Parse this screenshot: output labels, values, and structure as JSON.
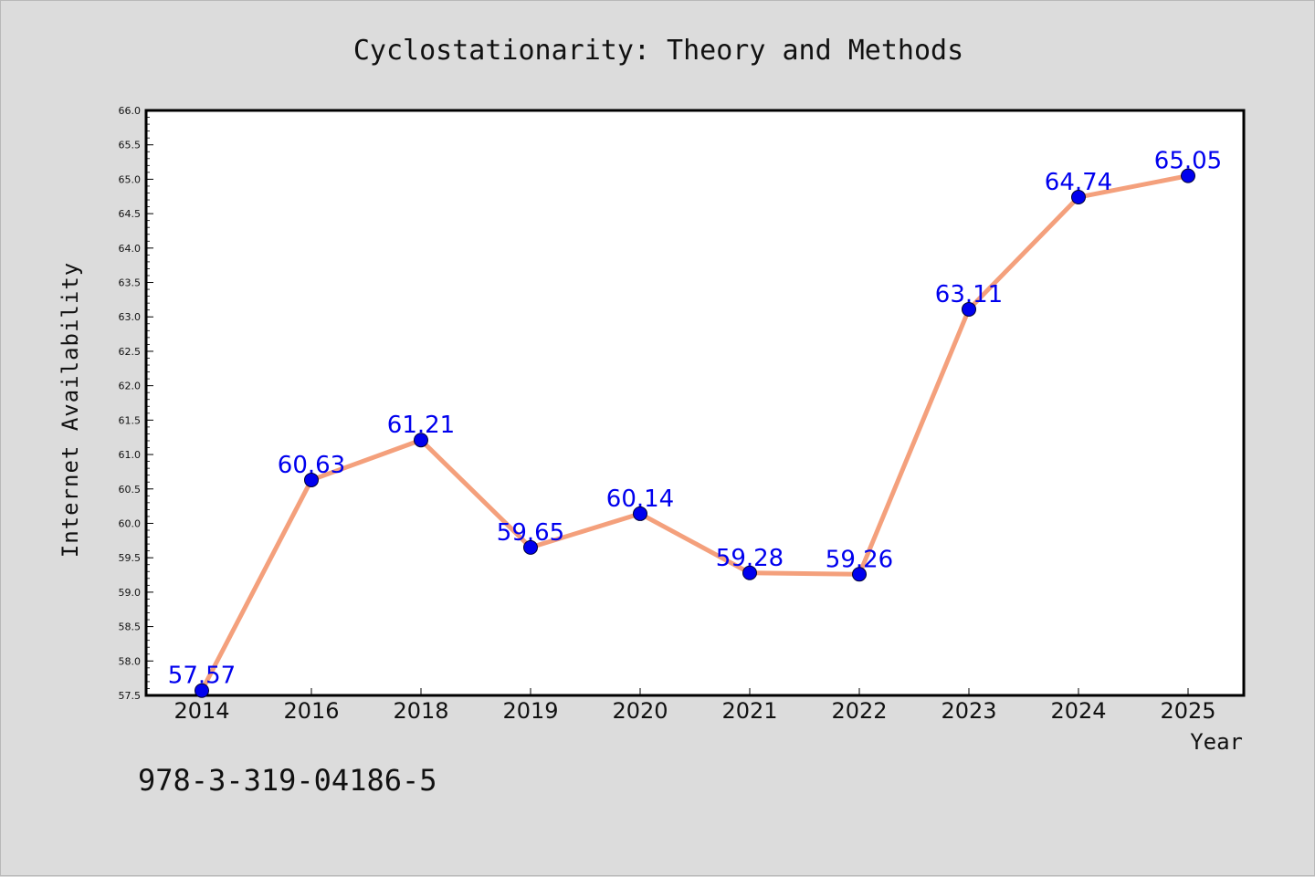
{
  "chart_data": {
    "type": "line",
    "title": "Cyclostationarity: Theory and Methods",
    "xlabel": "Year",
    "ylabel": "Internet Availability",
    "categories": [
      "2014",
      "2016",
      "2018",
      "2019",
      "2020",
      "2021",
      "2022",
      "2023",
      "2024",
      "2025"
    ],
    "series": [
      {
        "values": [
          57.57,
          60.63,
          61.21,
          59.65,
          60.14,
          59.28,
          59.26,
          63.11,
          64.74,
          65.05
        ],
        "labels": [
          "57.57",
          "60.63",
          "61.21",
          "59.65",
          "60.14",
          "59.28",
          "59.26",
          "63.11",
          "64.74",
          "65.05"
        ]
      }
    ],
    "ylim": [
      57.5,
      66.0
    ],
    "yticks": [
      "57.5",
      "58.0",
      "58.5",
      "59.0",
      "59.5",
      "60.0",
      "60.5",
      "61.0",
      "61.5",
      "62.0",
      "62.5",
      "63.0",
      "63.5",
      "64.0",
      "64.5",
      "65.0",
      "65.5",
      "66.0"
    ],
    "grid": false,
    "line_color": "#f4a07c",
    "marker_color": "#0000ee",
    "label_color": "#0000ee"
  },
  "footer": {
    "isbn": "978-3-319-04186-5"
  }
}
